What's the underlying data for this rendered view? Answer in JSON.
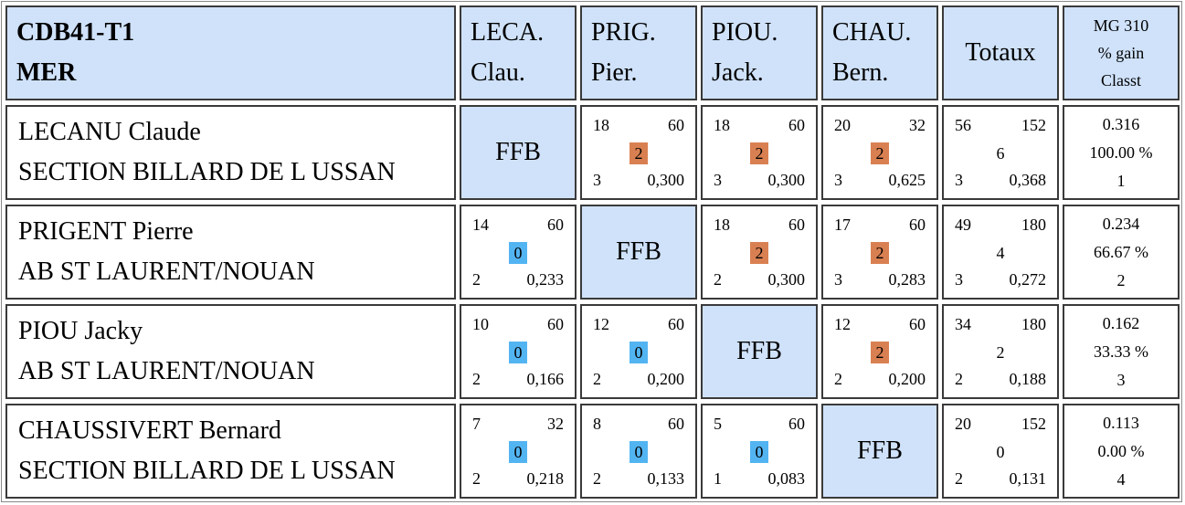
{
  "header": {
    "corner": [
      "CDB41-T1",
      "MER"
    ],
    "players": [
      [
        "LECA.",
        "Clau."
      ],
      [
        "PRIG.",
        "Pier."
      ],
      [
        "PIOU.",
        "Jack."
      ],
      [
        "CHAU.",
        "Bern."
      ]
    ],
    "totals": "Totaux",
    "summary": [
      "MG 310",
      "% gain",
      "Classt"
    ]
  },
  "rows": [
    {
      "name": "LECANU Claude",
      "club": "SECTION BILLARD DE L USSAN",
      "matches": [
        null,
        {
          "points": "18",
          "distance": "60",
          "result": "2",
          "innings": "3",
          "average": "0,300"
        },
        {
          "points": "18",
          "distance": "60",
          "result": "2",
          "innings": "3",
          "average": "0,300"
        },
        {
          "points": "20",
          "distance": "32",
          "result": "2",
          "innings": "3",
          "average": "0,625"
        }
      ],
      "totals": {
        "points": "56",
        "distance": "152",
        "match_points": "6",
        "innings": "3",
        "average": "0,368"
      },
      "summary": {
        "mg": "0.316",
        "pct": "100.00 %",
        "rank": "1"
      }
    },
    {
      "name": "PRIGENT Pierre",
      "club": "AB ST LAURENT/NOUAN",
      "matches": [
        {
          "points": "14",
          "distance": "60",
          "result": "0",
          "innings": "2",
          "average": "0,233"
        },
        null,
        {
          "points": "18",
          "distance": "60",
          "result": "2",
          "innings": "2",
          "average": "0,300"
        },
        {
          "points": "17",
          "distance": "60",
          "result": "2",
          "innings": "3",
          "average": "0,283"
        }
      ],
      "totals": {
        "points": "49",
        "distance": "180",
        "match_points": "4",
        "innings": "3",
        "average": "0,272"
      },
      "summary": {
        "mg": "0.234",
        "pct": "66.67 %",
        "rank": "2"
      }
    },
    {
      "name": "PIOU Jacky",
      "club": "AB ST LAURENT/NOUAN",
      "matches": [
        {
          "points": "10",
          "distance": "60",
          "result": "0",
          "innings": "2",
          "average": "0,166"
        },
        {
          "points": "12",
          "distance": "60",
          "result": "0",
          "innings": "2",
          "average": "0,200"
        },
        null,
        {
          "points": "12",
          "distance": "60",
          "result": "2",
          "innings": "2",
          "average": "0,200"
        }
      ],
      "totals": {
        "points": "34",
        "distance": "180",
        "match_points": "2",
        "innings": "2",
        "average": "0,188"
      },
      "summary": {
        "mg": "0.162",
        "pct": "33.33 %",
        "rank": "3"
      }
    },
    {
      "name": "CHAUSSIVERT Bernard",
      "club": "SECTION BILLARD DE L USSAN",
      "matches": [
        {
          "points": "7",
          "distance": "32",
          "result": "0",
          "innings": "2",
          "average": "0,218"
        },
        {
          "points": "8",
          "distance": "60",
          "result": "0",
          "innings": "2",
          "average": "0,133"
        },
        {
          "points": "5",
          "distance": "60",
          "result": "0",
          "innings": "1",
          "average": "0,083"
        },
        null
      ],
      "totals": {
        "points": "20",
        "distance": "152",
        "match_points": "0",
        "innings": "2",
        "average": "0,131"
      },
      "summary": {
        "mg": "0.113",
        "pct": "0.00 %",
        "rank": "4"
      }
    }
  ],
  "self_label": "FFB",
  "colors": {
    "header_bg": "#cfe2fa",
    "win": "#d98052",
    "loss": "#53b4f2",
    "border": "#3a3a3a"
  }
}
